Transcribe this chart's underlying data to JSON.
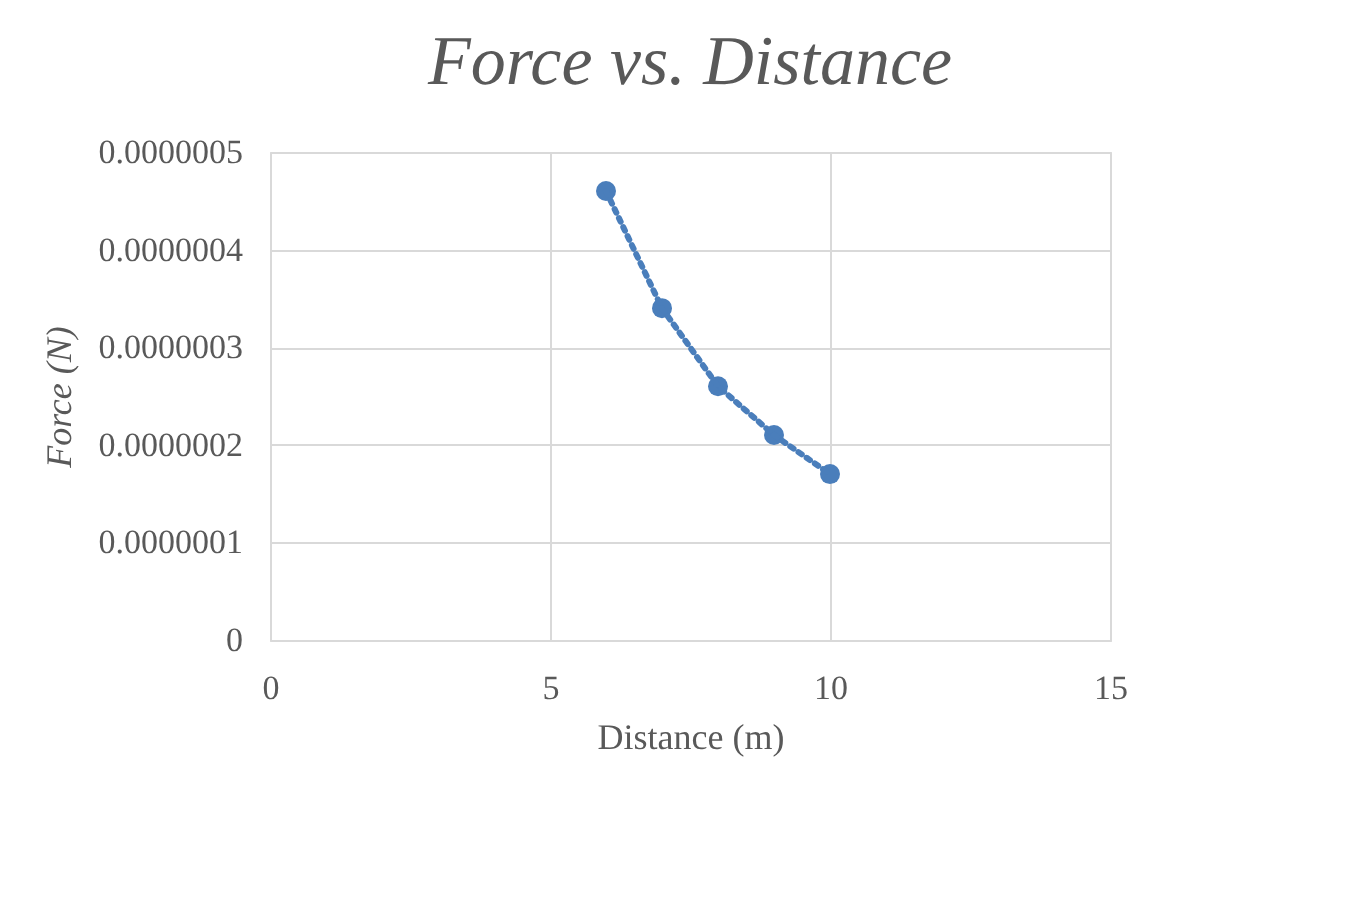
{
  "chart_data": {
    "type": "scatter",
    "title": "Force vs. Distance",
    "xlabel": "Distance (m)",
    "ylabel": "Force (N)",
    "xlim": [
      0,
      15
    ],
    "xticks": [
      0,
      5,
      10,
      15
    ],
    "ylim": [
      0,
      5e-07
    ],
    "yticks": [
      {
        "value": 0,
        "label": "0"
      },
      {
        "value": 1e-07,
        "label": "0.0000001"
      },
      {
        "value": 2e-07,
        "label": "0.0000002"
      },
      {
        "value": 3e-07,
        "label": "0.0000003"
      },
      {
        "value": 4e-07,
        "label": "0.0000004"
      },
      {
        "value": 5e-07,
        "label": "0.0000005"
      }
    ],
    "grid": true,
    "marker": "circle",
    "series": [
      {
        "color": "#4a7ebb",
        "x": [
          6,
          7,
          8,
          9,
          10
        ],
        "values": [
          4.6e-07,
          3.4e-07,
          2.6e-07,
          2.1e-07,
          1.7e-07
        ]
      },
      {
        "type": "line",
        "color": "#4a7ebb",
        "line_style": "dotted",
        "marker": "none",
        "x": [
          6,
          7,
          8,
          9,
          10
        ],
        "values": [
          4.6e-07,
          3.4e-07,
          2.6e-07,
          2.1e-07,
          1.7e-07
        ]
      }
    ]
  }
}
